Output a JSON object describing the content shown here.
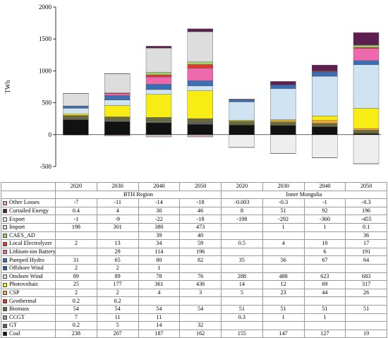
{
  "chart_data": {
    "type": "bar",
    "stacked": true,
    "ylabel": "TWh",
    "ylim": [
      -500,
      2000
    ],
    "yticks": [
      -500,
      0,
      500,
      1000,
      1500,
      2000
    ],
    "grid": false,
    "regions": [
      {
        "label": "BTH Region",
        "years": [
          "2020",
          "2030",
          "2040",
          "2050"
        ]
      },
      {
        "label": "Inner Mongolia",
        "years": [
          "2020",
          "2030",
          "2040",
          "2050"
        ]
      }
    ],
    "series": [
      {
        "name": "Other Losses",
        "color": "#e4a8c6",
        "table": [
          "-7",
          "-11",
          "-14",
          "-18",
          "-0.003",
          "-0.3",
          "-1",
          "-0.3"
        ]
      },
      {
        "name": "Curtailed Energy",
        "color": "#5c1f4f",
        "table": [
          "0.4",
          "4",
          "30",
          "46",
          "8",
          "51",
          "92",
          "196"
        ]
      },
      {
        "name": "Export",
        "color": "#eeeeee",
        "table": [
          "-1",
          "-9",
          "-22",
          "-18",
          "-198",
          "-292",
          "-360",
          "-455"
        ]
      },
      {
        "name": "Import",
        "color": "#dddddd",
        "table": [
          "198",
          "301",
          "380",
          "473",
          "",
          "1",
          "1",
          "0.1"
        ]
      },
      {
        "name": "CAES_AD",
        "color": "#9bd26b",
        "table": [
          "",
          "",
          "39",
          "40",
          "",
          "",
          "",
          "36"
        ]
      },
      {
        "name": "Local Electrolyzer",
        "color": "#e03a2e",
        "table": [
          "2",
          "13",
          "34",
          "59",
          "0.5",
          "4",
          "10",
          "17"
        ]
      },
      {
        "name": "Lithium-ion Battery",
        "color": "#ee68ad",
        "table": [
          "",
          "29",
          "114",
          "196",
          "",
          "",
          "6",
          "191"
        ]
      },
      {
        "name": "Pumped Hydro",
        "color": "#3a6fb7",
        "table": [
          "31",
          "65",
          "80",
          "82",
          "35",
          "56",
          "67",
          "64"
        ]
      },
      {
        "name": "Offshore Wind",
        "color": "#2b5fa6",
        "table": [
          "2",
          "2",
          "1",
          "",
          "",
          "",
          "",
          ""
        ]
      },
      {
        "name": "Onshore Wind",
        "color": "#cfe3f2",
        "table": [
          "89",
          "89",
          "78",
          "76",
          "288",
          "488",
          "623",
          "683"
        ]
      },
      {
        "name": "Photovoltaic",
        "color": "#f7ec13",
        "table": [
          "25",
          "177",
          "361",
          "436",
          "14",
          "12",
          "69",
          "317"
        ]
      },
      {
        "name": "CSP",
        "color": "#f2a83a",
        "table": [
          "2",
          "2",
          "4",
          "3",
          "5",
          "23",
          "44",
          "26"
        ]
      },
      {
        "name": "Geothermal",
        "color": "#d9362a",
        "table": [
          "0.2",
          "0.2",
          "",
          "",
          "",
          "",
          "",
          ""
        ]
      },
      {
        "name": "Biomass",
        "color": "#6b6b3a",
        "table": [
          "54",
          "54",
          "54",
          "54",
          "51",
          "51",
          "51",
          "51"
        ]
      },
      {
        "name": "CCGT",
        "color": "#9a9a9a",
        "table": [
          "7",
          "11",
          "11",
          "",
          "0.3",
          "1",
          "1",
          ""
        ]
      },
      {
        "name": "GT",
        "color": "#5f5f5f",
        "table": [
          "0.2",
          "5",
          "14",
          "32",
          "",
          "",
          "",
          ""
        ]
      },
      {
        "name": "Coal",
        "color": "#111111",
        "table": [
          "238",
          "207",
          "187",
          "162",
          "155",
          "147",
          "127",
          "19"
        ]
      }
    ]
  }
}
